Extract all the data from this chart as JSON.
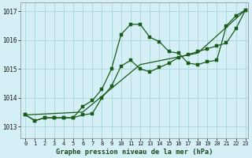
{
  "title": "Graphe pression niveau de la mer (hPa)",
  "background_color": "#d4eff5",
  "grid_color": "#b0d8df",
  "line_color": "#1a5c1a",
  "x_min": -0.5,
  "x_max": 23.3,
  "y_min": 1012.6,
  "y_max": 1017.3,
  "yticks": [
    1013,
    1014,
    1015,
    1016,
    1017
  ],
  "xticks": [
    0,
    1,
    2,
    3,
    4,
    5,
    6,
    7,
    8,
    9,
    10,
    11,
    12,
    13,
    14,
    15,
    16,
    17,
    18,
    19,
    20,
    21,
    22,
    23
  ],
  "series1_x": [
    0,
    1,
    2,
    3,
    4,
    5,
    6,
    7,
    8,
    9,
    10,
    11,
    12,
    13,
    14,
    15,
    16,
    17,
    18,
    19,
    20,
    21,
    22,
    23
  ],
  "series1_y": [
    1013.4,
    1013.2,
    1013.3,
    1013.3,
    1013.3,
    1013.3,
    1013.7,
    1013.9,
    1014.3,
    1015.0,
    1016.2,
    1016.55,
    1016.55,
    1016.1,
    1015.95,
    1015.6,
    1015.55,
    1015.2,
    1015.15,
    1015.25,
    1015.3,
    1016.5,
    1016.85,
    1017.05
  ],
  "series2_x": [
    0,
    1,
    2,
    3,
    4,
    5,
    6,
    7,
    8,
    9,
    10,
    11,
    12,
    13,
    14,
    15,
    16,
    17,
    18,
    19,
    20,
    21,
    22,
    23
  ],
  "series2_y": [
    1013.4,
    1013.2,
    1013.3,
    1013.3,
    1013.3,
    1013.3,
    1013.4,
    1013.45,
    1014.0,
    1014.4,
    1015.1,
    1015.3,
    1015.0,
    1014.9,
    1015.05,
    1015.2,
    1015.4,
    1015.5,
    1015.6,
    1015.7,
    1015.8,
    1015.9,
    1016.4,
    1017.05
  ],
  "series3_x": [
    0,
    6,
    12,
    18,
    23
  ],
  "series3_y": [
    1013.4,
    1013.5,
    1015.15,
    1015.55,
    1017.05
  ]
}
